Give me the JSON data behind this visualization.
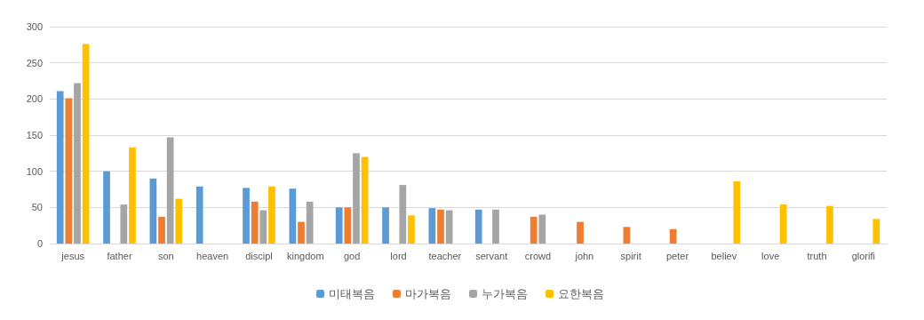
{
  "chart_data": {
    "type": "bar",
    "categories": [
      "jesus",
      "father",
      "son",
      "heaven",
      "discipl",
      "kingdom",
      "god",
      "lord",
      "teacher",
      "servant",
      "crowd",
      "john",
      "spirit",
      "peter",
      "believ",
      "love",
      "truth",
      "glorifi"
    ],
    "series": [
      {
        "name": "미태복음",
        "color": "#5b9bd5",
        "values": [
          211,
          100,
          90,
          79,
          77,
          76,
          50,
          50,
          49,
          47,
          null,
          null,
          null,
          null,
          null,
          null,
          null,
          null
        ]
      },
      {
        "name": "마가복음",
        "color": "#ed7d31",
        "values": [
          201,
          null,
          37,
          null,
          58,
          30,
          50,
          null,
          47,
          null,
          37,
          30,
          23,
          20,
          null,
          null,
          null,
          null
        ]
      },
      {
        "name": "누가복음",
        "color": "#a5a5a5",
        "values": [
          222,
          54,
          147,
          null,
          46,
          58,
          125,
          81,
          46,
          47,
          40,
          null,
          null,
          null,
          null,
          null,
          null,
          null
        ]
      },
      {
        "name": "요한복음",
        "color": "#ffc000",
        "values": [
          276,
          133,
          62,
          null,
          79,
          null,
          120,
          39,
          null,
          null,
          null,
          null,
          null,
          null,
          86,
          54,
          52,
          34
        ]
      }
    ],
    "ylim": [
      0,
      300
    ],
    "yticks": [
      0,
      50,
      100,
      150,
      200,
      250,
      300
    ],
    "grid": "y",
    "legend": "bottom"
  }
}
